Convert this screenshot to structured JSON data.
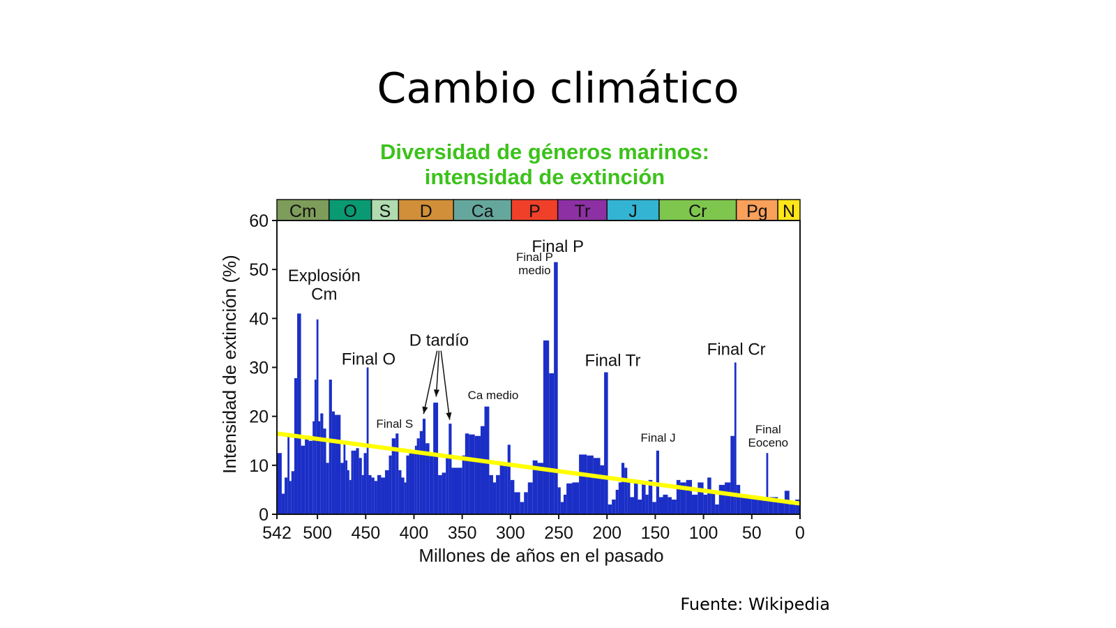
{
  "slide": {
    "title": "Cambio climático",
    "source": "Fuente: Wikipedia"
  },
  "colors": {
    "bars": "#1b2fc7",
    "trend": "#ffff00",
    "figure_title": "#3cc21b"
  },
  "chart_data": {
    "type": "bar",
    "title": "Diversidad de géneros marinos:",
    "subtitle": "intensidad de extinción",
    "xlabel": "Millones de años en el pasado",
    "ylabel": "Intensidad de extinción (%)",
    "xlim": [
      542,
      0
    ],
    "ylim": [
      0,
      60
    ],
    "x_ticks": [
      542,
      500,
      450,
      400,
      350,
      300,
      250,
      200,
      150,
      100,
      50,
      0
    ],
    "y_ticks": [
      0,
      10,
      20,
      30,
      40,
      50,
      60
    ],
    "periods": [
      {
        "label": "Cm",
        "start": 542,
        "end": 488,
        "color": "#7e9c5a"
      },
      {
        "label": "O",
        "start": 488,
        "end": 444,
        "color": "#0a9a73"
      },
      {
        "label": "S",
        "start": 444,
        "end": 416,
        "color": "#b0dcb0"
      },
      {
        "label": "D",
        "start": 416,
        "end": 359,
        "color": "#d08f38"
      },
      {
        "label": "Ca",
        "start": 359,
        "end": 299,
        "color": "#66a79d"
      },
      {
        "label": "P",
        "start": 299,
        "end": 251,
        "color": "#f0402a"
      },
      {
        "label": "Tr",
        "start": 251,
        "end": 200,
        "color": "#8d30a3"
      },
      {
        "label": "J",
        "start": 200,
        "end": 146,
        "color": "#33b4d3"
      },
      {
        "label": "Cr",
        "start": 146,
        "end": 66,
        "color": "#7fc64e"
      },
      {
        "label": "Pg",
        "start": 66,
        "end": 23,
        "color": "#f9a05a"
      },
      {
        "label": "N",
        "start": 23,
        "end": 0,
        "color": "#ffe619"
      }
    ],
    "bars": [
      {
        "x0": 542,
        "x1": 537,
        "y": 12.5
      },
      {
        "x0": 537,
        "x1": 534,
        "y": 4.2
      },
      {
        "x0": 534,
        "x1": 531,
        "y": 7.5
      },
      {
        "x0": 531,
        "x1": 529,
        "y": 15.8
      },
      {
        "x0": 529,
        "x1": 527,
        "y": 6.8
      },
      {
        "x0": 527,
        "x1": 524,
        "y": 8.8
      },
      {
        "x0": 524,
        "x1": 521,
        "y": 27.8
      },
      {
        "x0": 521,
        "x1": 517,
        "y": 41.0
      },
      {
        "x0": 517,
        "x1": 513,
        "y": 14.0
      },
      {
        "x0": 513,
        "x1": 509,
        "y": 16.0
      },
      {
        "x0": 509,
        "x1": 505,
        "y": 15.0
      },
      {
        "x0": 505,
        "x1": 503,
        "y": 19.0
      },
      {
        "x0": 503,
        "x1": 501,
        "y": 27.5
      },
      {
        "x0": 501,
        "x1": 499,
        "y": 39.8
      },
      {
        "x0": 499,
        "x1": 497,
        "y": 19.0
      },
      {
        "x0": 497,
        "x1": 494,
        "y": 20.6
      },
      {
        "x0": 494,
        "x1": 491,
        "y": 17.5
      },
      {
        "x0": 491,
        "x1": 488,
        "y": 10.5
      },
      {
        "x0": 488,
        "x1": 485,
        "y": 27.5
      },
      {
        "x0": 485,
        "x1": 482,
        "y": 21.0
      },
      {
        "x0": 482,
        "x1": 476,
        "y": 20.3
      },
      {
        "x0": 476,
        "x1": 473,
        "y": 10.5
      },
      {
        "x0": 473,
        "x1": 471,
        "y": 14.5
      },
      {
        "x0": 471,
        "x1": 469,
        "y": 11.0
      },
      {
        "x0": 469,
        "x1": 467,
        "y": 9.0
      },
      {
        "x0": 467,
        "x1": 465,
        "y": 7.0
      },
      {
        "x0": 465,
        "x1": 463,
        "y": 13.0
      },
      {
        "x0": 463,
        "x1": 460,
        "y": 13.0
      },
      {
        "x0": 460,
        "x1": 457,
        "y": 13.5
      },
      {
        "x0": 457,
        "x1": 454,
        "y": 11.5
      },
      {
        "x0": 454,
        "x1": 452,
        "y": 8.0
      },
      {
        "x0": 452,
        "x1": 449,
        "y": 12.5
      },
      {
        "x0": 449,
        "x1": 447,
        "y": 30.0
      },
      {
        "x0": 447,
        "x1": 444,
        "y": 8.0
      },
      {
        "x0": 444,
        "x1": 441,
        "y": 7.5
      },
      {
        "x0": 441,
        "x1": 438,
        "y": 6.8
      },
      {
        "x0": 438,
        "x1": 434,
        "y": 8.0
      },
      {
        "x0": 434,
        "x1": 430,
        "y": 7.5
      },
      {
        "x0": 430,
        "x1": 426,
        "y": 9.0
      },
      {
        "x0": 426,
        "x1": 423,
        "y": 12.0
      },
      {
        "x0": 423,
        "x1": 419,
        "y": 15.5
      },
      {
        "x0": 419,
        "x1": 416,
        "y": 16.5
      },
      {
        "x0": 416,
        "x1": 413,
        "y": 9.0
      },
      {
        "x0": 413,
        "x1": 410,
        "y": 7.5
      },
      {
        "x0": 410,
        "x1": 408,
        "y": 6.5
      },
      {
        "x0": 408,
        "x1": 405,
        "y": 12.0
      },
      {
        "x0": 405,
        "x1": 399,
        "y": 12.5
      },
      {
        "x0": 399,
        "x1": 397,
        "y": 14.0
      },
      {
        "x0": 397,
        "x1": 394,
        "y": 15.5
      },
      {
        "x0": 394,
        "x1": 391,
        "y": 17.0
      },
      {
        "x0": 391,
        "x1": 388,
        "y": 19.5
      },
      {
        "x0": 388,
        "x1": 384,
        "y": 14.5
      },
      {
        "x0": 384,
        "x1": 380,
        "y": 12.0
      },
      {
        "x0": 380,
        "x1": 375,
        "y": 22.8
      },
      {
        "x0": 375,
        "x1": 371,
        "y": 8.0
      },
      {
        "x0": 371,
        "x1": 367,
        "y": 8.5
      },
      {
        "x0": 367,
        "x1": 364,
        "y": 12.0
      },
      {
        "x0": 364,
        "x1": 361,
        "y": 18.5
      },
      {
        "x0": 361,
        "x1": 357,
        "y": 9.5
      },
      {
        "x0": 357,
        "x1": 350,
        "y": 9.5
      },
      {
        "x0": 350,
        "x1": 347,
        "y": 12.0
      },
      {
        "x0": 347,
        "x1": 343,
        "y": 16.5
      },
      {
        "x0": 343,
        "x1": 337,
        "y": 16.3
      },
      {
        "x0": 337,
        "x1": 331,
        "y": 16.0
      },
      {
        "x0": 331,
        "x1": 327,
        "y": 18.0
      },
      {
        "x0": 327,
        "x1": 322,
        "y": 22.0
      },
      {
        "x0": 322,
        "x1": 318,
        "y": 8.0
      },
      {
        "x0": 318,
        "x1": 315,
        "y": 6.5
      },
      {
        "x0": 315,
        "x1": 311,
        "y": 8.0
      },
      {
        "x0": 311,
        "x1": 306,
        "y": 10.0
      },
      {
        "x0": 306,
        "x1": 303,
        "y": 10.5
      },
      {
        "x0": 303,
        "x1": 300,
        "y": 14.2
      },
      {
        "x0": 300,
        "x1": 296,
        "y": 7.0
      },
      {
        "x0": 296,
        "x1": 290,
        "y": 4.5
      },
      {
        "x0": 290,
        "x1": 286,
        "y": 2.5
      },
      {
        "x0": 286,
        "x1": 282,
        "y": 4.5
      },
      {
        "x0": 282,
        "x1": 277,
        "y": 6.5
      },
      {
        "x0": 277,
        "x1": 272,
        "y": 11.0
      },
      {
        "x0": 272,
        "x1": 266,
        "y": 10.5
      },
      {
        "x0": 266,
        "x1": 260,
        "y": 35.5
      },
      {
        "x0": 260,
        "x1": 255,
        "y": 28.8
      },
      {
        "x0": 255,
        "x1": 251,
        "y": 51.5
      },
      {
        "x0": 251,
        "x1": 248,
        "y": 5.5
      },
      {
        "x0": 248,
        "x1": 245,
        "y": 2.5
      },
      {
        "x0": 245,
        "x1": 242,
        "y": 4.0
      },
      {
        "x0": 242,
        "x1": 236,
        "y": 6.3
      },
      {
        "x0": 236,
        "x1": 229,
        "y": 6.5
      },
      {
        "x0": 229,
        "x1": 221,
        "y": 12.2
      },
      {
        "x0": 221,
        "x1": 214,
        "y": 12.0
      },
      {
        "x0": 214,
        "x1": 207,
        "y": 11.5
      },
      {
        "x0": 207,
        "x1": 203,
        "y": 10.0
      },
      {
        "x0": 203,
        "x1": 199,
        "y": 29.0
      },
      {
        "x0": 199,
        "x1": 195,
        "y": 2.0
      },
      {
        "x0": 195,
        "x1": 191,
        "y": 3.0
      },
      {
        "x0": 191,
        "x1": 188,
        "y": 5.0
      },
      {
        "x0": 188,
        "x1": 185,
        "y": 6.5
      },
      {
        "x0": 185,
        "x1": 182,
        "y": 10.5
      },
      {
        "x0": 182,
        "x1": 179,
        "y": 9.5
      },
      {
        "x0": 179,
        "x1": 176,
        "y": 6.5
      },
      {
        "x0": 176,
        "x1": 172,
        "y": 3.5
      },
      {
        "x0": 172,
        "x1": 168,
        "y": 6.5
      },
      {
        "x0": 168,
        "x1": 164,
        "y": 3.0
      },
      {
        "x0": 164,
        "x1": 160,
        "y": 6.5
      },
      {
        "x0": 160,
        "x1": 157,
        "y": 4.0
      },
      {
        "x0": 157,
        "x1": 153,
        "y": 7.0
      },
      {
        "x0": 153,
        "x1": 149,
        "y": 2.5
      },
      {
        "x0": 149,
        "x1": 146,
        "y": 13.0
      },
      {
        "x0": 146,
        "x1": 142,
        "y": 3.5
      },
      {
        "x0": 142,
        "x1": 137,
        "y": 4.0
      },
      {
        "x0": 137,
        "x1": 133,
        "y": 3.5
      },
      {
        "x0": 133,
        "x1": 128,
        "y": 3.0
      },
      {
        "x0": 128,
        "x1": 124,
        "y": 7.0
      },
      {
        "x0": 124,
        "x1": 118,
        "y": 6.5
      },
      {
        "x0": 118,
        "x1": 112,
        "y": 7.0
      },
      {
        "x0": 112,
        "x1": 106,
        "y": 4.0
      },
      {
        "x0": 106,
        "x1": 100,
        "y": 6.5
      },
      {
        "x0": 100,
        "x1": 96,
        "y": 4.0
      },
      {
        "x0": 96,
        "x1": 92,
        "y": 7.5
      },
      {
        "x0": 92,
        "x1": 88,
        "y": 4.5
      },
      {
        "x0": 88,
        "x1": 84,
        "y": 2.0
      },
      {
        "x0": 84,
        "x1": 78,
        "y": 6.0
      },
      {
        "x0": 78,
        "x1": 72,
        "y": 6.5
      },
      {
        "x0": 72,
        "x1": 68,
        "y": 16.0
      },
      {
        "x0": 68,
        "x1": 66,
        "y": 31.0
      },
      {
        "x0": 66,
        "x1": 62,
        "y": 6.0
      },
      {
        "x0": 62,
        "x1": 56,
        "y": 3.5
      },
      {
        "x0": 56,
        "x1": 50,
        "y": 3.5
      },
      {
        "x0": 50,
        "x1": 44,
        "y": 3.5
      },
      {
        "x0": 44,
        "x1": 38,
        "y": 3.5
      },
      {
        "x0": 38,
        "x1": 35,
        "y": 3.5
      },
      {
        "x0": 35,
        "x1": 33,
        "y": 12.5
      },
      {
        "x0": 33,
        "x1": 28,
        "y": 3.5
      },
      {
        "x0": 28,
        "x1": 23,
        "y": 3.5
      },
      {
        "x0": 23,
        "x1": 16,
        "y": 2.5
      },
      {
        "x0": 16,
        "x1": 11,
        "y": 4.8
      },
      {
        "x0": 11,
        "x1": 5,
        "y": 2.0
      },
      {
        "x0": 5,
        "x1": 0,
        "y": 3.0
      }
    ],
    "trend": {
      "start": [
        542,
        16.5
      ],
      "end": [
        0,
        2.2
      ]
    },
    "annotations": [
      {
        "text": "Explosión",
        "x": 493,
        "y": 47.6,
        "size": "large"
      },
      {
        "text": "Cm",
        "x": 493,
        "y": 43.8,
        "size": "large"
      },
      {
        "text": "Final O",
        "x": 447,
        "y": 30.6,
        "size": "large"
      },
      {
        "text": "Final S",
        "x": 420,
        "y": 17.7,
        "size": "small"
      },
      {
        "text": "D tardío",
        "x": 374,
        "y": 34.4,
        "size": "large"
      },
      {
        "text": "Ca medio",
        "x": 318,
        "y": 23.5,
        "size": "small"
      },
      {
        "text": "Final P",
        "x": 275,
        "y": 51.7,
        "size": "small"
      },
      {
        "text": "medio",
        "x": 275,
        "y": 49.0,
        "size": "small"
      },
      {
        "text": "Final P",
        "x": 251,
        "y": 53.6,
        "size": "large"
      },
      {
        "text": "Final Tr",
        "x": 194,
        "y": 30.3,
        "size": "large"
      },
      {
        "text": "Final J",
        "x": 147,
        "y": 14.8,
        "size": "small"
      },
      {
        "text": "Final Cr",
        "x": 66,
        "y": 32.6,
        "size": "large"
      },
      {
        "text": "Final",
        "x": 33,
        "y": 16.5,
        "size": "small"
      },
      {
        "text": "Eoceno",
        "x": 33,
        "y": 13.8,
        "size": "small"
      }
    ],
    "arrows": [
      {
        "from": [
          376,
          33.4
        ],
        "to": [
          390,
          20.5
        ]
      },
      {
        "from": [
          374,
          33.4
        ],
        "to": [
          377,
          24.0
        ]
      },
      {
        "from": [
          372,
          33.4
        ],
        "to": [
          363,
          19.3
        ]
      }
    ]
  }
}
